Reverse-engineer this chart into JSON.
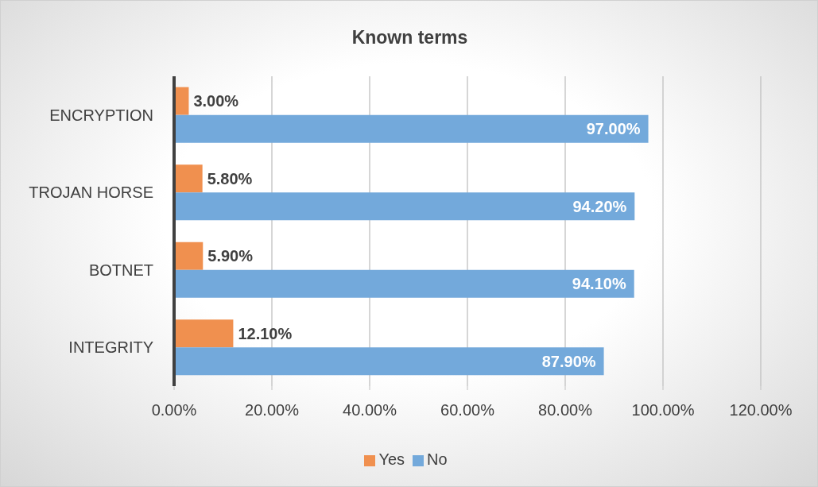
{
  "chart_data": {
    "type": "bar",
    "orientation": "horizontal",
    "title": "Known terms",
    "categories": [
      "ENCRYPTION",
      "TROJAN HORSE",
      "BOTNET",
      "INTEGRITY"
    ],
    "series": [
      {
        "name": "Yes",
        "color": "#f0904f",
        "values": [
          3,
          5.8,
          5.9,
          12.1
        ],
        "value_labels": [
          "3.00%",
          "5.80%",
          "5.90%",
          "12.10%"
        ]
      },
      {
        "name": "No",
        "color": "#73a9db",
        "values": [
          97,
          94.2,
          94.1,
          87.9
        ],
        "value_labels": [
          "97.00%",
          "94.20%",
          "94.10%",
          "87.90%"
        ]
      }
    ],
    "xlim": [
      0,
      120
    ],
    "xticks": [
      {
        "value": 0,
        "label": "0.00%"
      },
      {
        "value": 20,
        "label": "20.00%"
      },
      {
        "value": 40,
        "label": "40.00%"
      },
      {
        "value": 60,
        "label": "60.00%"
      },
      {
        "value": 80,
        "label": "80.00%"
      },
      {
        "value": 100,
        "label": "100.00%"
      },
      {
        "value": 120,
        "label": "120.00%"
      }
    ],
    "grid": "x",
    "legend": "bottom"
  }
}
